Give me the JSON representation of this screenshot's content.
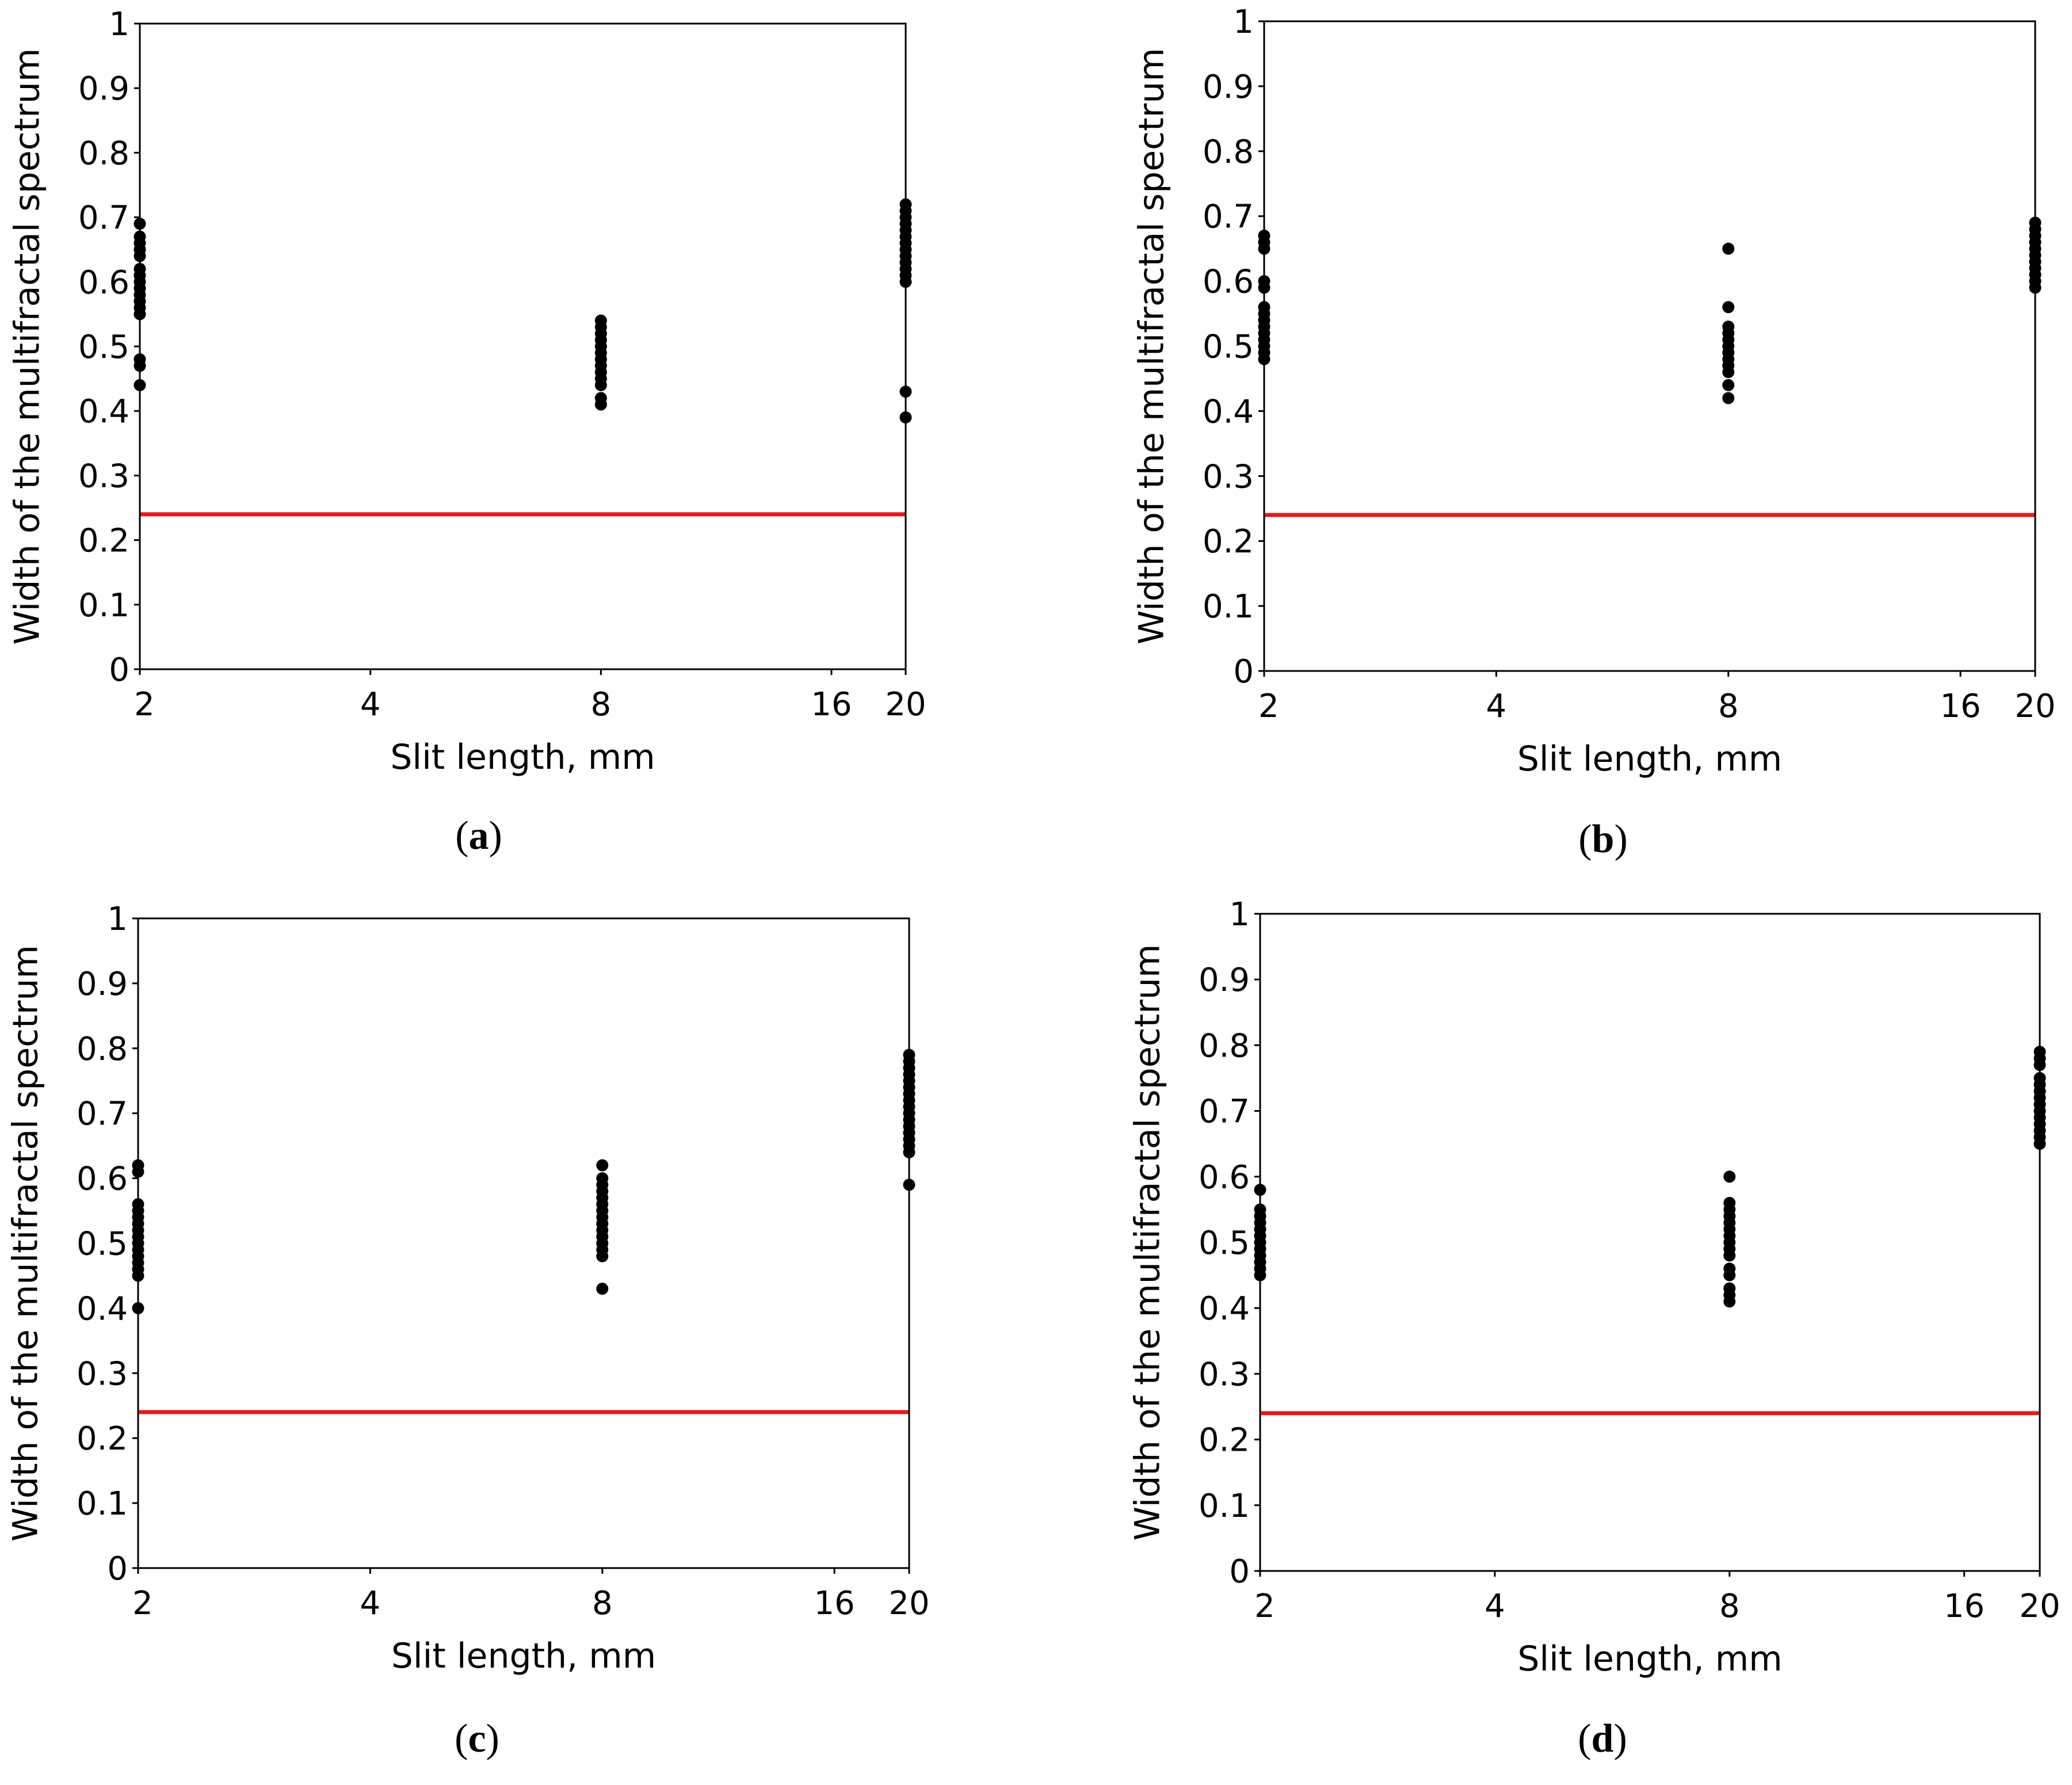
{
  "chart_data": [
    {
      "type": "scatter",
      "panel": "(a)",
      "xlabel": "Slit length, mm",
      "ylabel": "Width of the multifractal spectrum",
      "xscale": "log",
      "x_ticks": [
        2,
        4,
        8,
        16,
        20
      ],
      "x_tick_labels": [
        "2",
        "4",
        "8",
        "16",
        "20"
      ],
      "ylim": [
        0,
        1
      ],
      "y_ticks": [
        0,
        0.1,
        0.2,
        0.3,
        0.4,
        0.5,
        0.6,
        0.7,
        0.8,
        0.9,
        1
      ],
      "y_tick_labels": [
        "0",
        "0.1",
        "0.2",
        "0.3",
        "0.4",
        "0.5",
        "0.6",
        "0.7",
        "0.8",
        "0.9",
        "1"
      ],
      "reference_line": {
        "y": 0.24,
        "color": "#e41a1c"
      },
      "series": [
        {
          "name": "points",
          "color": "#000000",
          "points": [
            [
              2,
              0.69
            ],
            [
              2,
              0.67
            ],
            [
              2,
              0.66
            ],
            [
              2,
              0.65
            ],
            [
              2,
              0.64
            ],
            [
              2,
              0.62
            ],
            [
              2,
              0.61
            ],
            [
              2,
              0.6
            ],
            [
              2,
              0.59
            ],
            [
              2,
              0.58
            ],
            [
              2,
              0.57
            ],
            [
              2,
              0.56
            ],
            [
              2,
              0.55
            ],
            [
              2,
              0.48
            ],
            [
              2,
              0.47
            ],
            [
              2,
              0.44
            ],
            [
              8,
              0.54
            ],
            [
              8,
              0.53
            ],
            [
              8,
              0.52
            ],
            [
              8,
              0.51
            ],
            [
              8,
              0.5
            ],
            [
              8,
              0.49
            ],
            [
              8,
              0.48
            ],
            [
              8,
              0.47
            ],
            [
              8,
              0.46
            ],
            [
              8,
              0.45
            ],
            [
              8,
              0.44
            ],
            [
              8,
              0.42
            ],
            [
              8,
              0.41
            ],
            [
              20,
              0.72
            ],
            [
              20,
              0.71
            ],
            [
              20,
              0.7
            ],
            [
              20,
              0.69
            ],
            [
              20,
              0.68
            ],
            [
              20,
              0.67
            ],
            [
              20,
              0.66
            ],
            [
              20,
              0.65
            ],
            [
              20,
              0.64
            ],
            [
              20,
              0.63
            ],
            [
              20,
              0.62
            ],
            [
              20,
              0.61
            ],
            [
              20,
              0.6
            ],
            [
              20,
              0.43
            ],
            [
              20,
              0.39
            ]
          ]
        }
      ]
    },
    {
      "type": "scatter",
      "panel": "(b)",
      "xlabel": "Slit length, mm",
      "ylabel": "Width of the multifractal spectrum",
      "xscale": "log",
      "x_ticks": [
        2,
        4,
        8,
        16,
        20
      ],
      "x_tick_labels": [
        "2",
        "4",
        "8",
        "16",
        "20"
      ],
      "ylim": [
        0,
        1
      ],
      "y_ticks": [
        0,
        0.1,
        0.2,
        0.3,
        0.4,
        0.5,
        0.6,
        0.7,
        0.8,
        0.9,
        1
      ],
      "y_tick_labels": [
        "0",
        "0.1",
        "0.2",
        "0.3",
        "0.4",
        "0.5",
        "0.6",
        "0.7",
        "0.8",
        "0.9",
        "1"
      ],
      "reference_line": {
        "y": 0.24,
        "color": "#e41a1c"
      },
      "series": [
        {
          "name": "points",
          "color": "#000000",
          "points": [
            [
              2,
              0.67
            ],
            [
              2,
              0.66
            ],
            [
              2,
              0.65
            ],
            [
              2,
              0.6
            ],
            [
              2,
              0.59
            ],
            [
              2,
              0.56
            ],
            [
              2,
              0.55
            ],
            [
              2,
              0.54
            ],
            [
              2,
              0.53
            ],
            [
              2,
              0.52
            ],
            [
              2,
              0.51
            ],
            [
              2,
              0.5
            ],
            [
              2,
              0.49
            ],
            [
              2,
              0.48
            ],
            [
              8,
              0.65
            ],
            [
              8,
              0.56
            ],
            [
              8,
              0.53
            ],
            [
              8,
              0.52
            ],
            [
              8,
              0.51
            ],
            [
              8,
              0.5
            ],
            [
              8,
              0.49
            ],
            [
              8,
              0.48
            ],
            [
              8,
              0.47
            ],
            [
              8,
              0.46
            ],
            [
              8,
              0.44
            ],
            [
              8,
              0.42
            ],
            [
              20,
              0.69
            ],
            [
              20,
              0.68
            ],
            [
              20,
              0.67
            ],
            [
              20,
              0.66
            ],
            [
              20,
              0.65
            ],
            [
              20,
              0.64
            ],
            [
              20,
              0.63
            ],
            [
              20,
              0.62
            ],
            [
              20,
              0.61
            ],
            [
              20,
              0.6
            ],
            [
              20,
              0.59
            ]
          ]
        }
      ]
    },
    {
      "type": "scatter",
      "panel": "(c)",
      "xlabel": "Slit length, mm",
      "ylabel": "Width of the multifractal spectrum",
      "xscale": "log",
      "x_ticks": [
        2,
        4,
        8,
        16,
        20
      ],
      "x_tick_labels": [
        "2",
        "4",
        "8",
        "16",
        "20"
      ],
      "ylim": [
        0,
        1
      ],
      "y_ticks": [
        0,
        0.1,
        0.2,
        0.3,
        0.4,
        0.5,
        0.6,
        0.7,
        0.8,
        0.9,
        1
      ],
      "y_tick_labels": [
        "0",
        "0.1",
        "0.2",
        "0.3",
        "0.4",
        "0.5",
        "0.6",
        "0.7",
        "0.8",
        "0.9",
        "1"
      ],
      "reference_line": {
        "y": 0.24,
        "color": "#e41a1c"
      },
      "series": [
        {
          "name": "points",
          "color": "#000000",
          "points": [
            [
              2,
              0.62
            ],
            [
              2,
              0.61
            ],
            [
              2,
              0.56
            ],
            [
              2,
              0.55
            ],
            [
              2,
              0.54
            ],
            [
              2,
              0.53
            ],
            [
              2,
              0.52
            ],
            [
              2,
              0.51
            ],
            [
              2,
              0.5
            ],
            [
              2,
              0.49
            ],
            [
              2,
              0.48
            ],
            [
              2,
              0.47
            ],
            [
              2,
              0.46
            ],
            [
              2,
              0.45
            ],
            [
              2,
              0.4
            ],
            [
              8,
              0.62
            ],
            [
              8,
              0.6
            ],
            [
              8,
              0.59
            ],
            [
              8,
              0.58
            ],
            [
              8,
              0.57
            ],
            [
              8,
              0.56
            ],
            [
              8,
              0.55
            ],
            [
              8,
              0.54
            ],
            [
              8,
              0.53
            ],
            [
              8,
              0.52
            ],
            [
              8,
              0.51
            ],
            [
              8,
              0.5
            ],
            [
              8,
              0.49
            ],
            [
              8,
              0.48
            ],
            [
              8,
              0.43
            ],
            [
              20,
              0.79
            ],
            [
              20,
              0.78
            ],
            [
              20,
              0.77
            ],
            [
              20,
              0.76
            ],
            [
              20,
              0.75
            ],
            [
              20,
              0.74
            ],
            [
              20,
              0.73
            ],
            [
              20,
              0.72
            ],
            [
              20,
              0.71
            ],
            [
              20,
              0.7
            ],
            [
              20,
              0.69
            ],
            [
              20,
              0.68
            ],
            [
              20,
              0.67
            ],
            [
              20,
              0.66
            ],
            [
              20,
              0.65
            ],
            [
              20,
              0.64
            ],
            [
              20,
              0.59
            ]
          ]
        }
      ]
    },
    {
      "type": "scatter",
      "panel": "(d)",
      "xlabel": "Slit length, mm",
      "ylabel": "Width of the multifractal spectrum",
      "xscale": "log",
      "x_ticks": [
        2,
        4,
        8,
        16,
        20
      ],
      "x_tick_labels": [
        "2",
        "4",
        "8",
        "16",
        "20"
      ],
      "ylim": [
        0,
        1
      ],
      "y_ticks": [
        0,
        0.1,
        0.2,
        0.3,
        0.4,
        0.5,
        0.6,
        0.7,
        0.8,
        0.9,
        1
      ],
      "y_tick_labels": [
        "0",
        "0.1",
        "0.2",
        "0.3",
        "0.4",
        "0.5",
        "0.6",
        "0.7",
        "0.8",
        "0.9",
        "1"
      ],
      "reference_line": {
        "y": 0.24,
        "color": "#e41a1c"
      },
      "series": [
        {
          "name": "points",
          "color": "#000000",
          "points": [
            [
              2,
              0.58
            ],
            [
              2,
              0.55
            ],
            [
              2,
              0.54
            ],
            [
              2,
              0.53
            ],
            [
              2,
              0.52
            ],
            [
              2,
              0.51
            ],
            [
              2,
              0.5
            ],
            [
              2,
              0.49
            ],
            [
              2,
              0.48
            ],
            [
              2,
              0.47
            ],
            [
              2,
              0.46
            ],
            [
              2,
              0.45
            ],
            [
              8,
              0.6
            ],
            [
              8,
              0.56
            ],
            [
              8,
              0.55
            ],
            [
              8,
              0.54
            ],
            [
              8,
              0.53
            ],
            [
              8,
              0.52
            ],
            [
              8,
              0.51
            ],
            [
              8,
              0.5
            ],
            [
              8,
              0.49
            ],
            [
              8,
              0.48
            ],
            [
              8,
              0.46
            ],
            [
              8,
              0.45
            ],
            [
              8,
              0.43
            ],
            [
              8,
              0.42
            ],
            [
              8,
              0.41
            ],
            [
              20,
              0.79
            ],
            [
              20,
              0.78
            ],
            [
              20,
              0.77
            ],
            [
              20,
              0.75
            ],
            [
              20,
              0.74
            ],
            [
              20,
              0.73
            ],
            [
              20,
              0.72
            ],
            [
              20,
              0.71
            ],
            [
              20,
              0.7
            ],
            [
              20,
              0.69
            ],
            [
              20,
              0.68
            ],
            [
              20,
              0.67
            ],
            [
              20,
              0.66
            ],
            [
              20,
              0.65
            ]
          ]
        }
      ]
    }
  ]
}
